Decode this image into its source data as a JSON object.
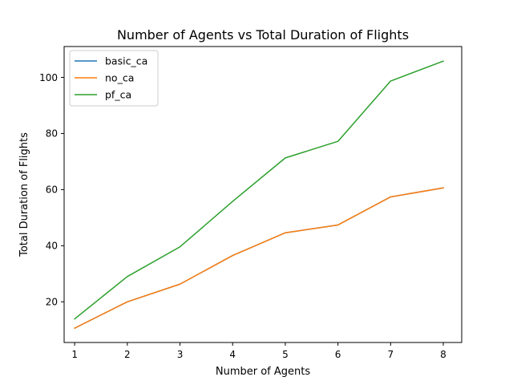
{
  "chart_data": {
    "type": "line",
    "title": "Number of Agents vs Total Duration of Flights",
    "xlabel": "Number of Agents",
    "ylabel": "Total Duration of Flights",
    "x": [
      1,
      2,
      3,
      4,
      5,
      6,
      7,
      8
    ],
    "xlim": [
      0.8,
      8.35
    ],
    "ylim": [
      5.5,
      111
    ],
    "xticks": [
      1,
      2,
      3,
      4,
      5,
      6,
      7,
      8
    ],
    "yticks": [
      20,
      40,
      60,
      80,
      100
    ],
    "grid": false,
    "legend": "upper-left",
    "series": [
      {
        "name": "basic_ca",
        "color": "#1f77b4",
        "values": [
          10.6,
          20.0,
          26.3,
          36.5,
          44.6,
          47.4,
          57.4,
          60.6
        ]
      },
      {
        "name": "no_ca",
        "color": "#ff7f0e",
        "values": [
          10.6,
          20.0,
          26.3,
          36.5,
          44.6,
          47.4,
          57.4,
          60.6
        ]
      },
      {
        "name": "pf_ca",
        "color": "#2ca02c",
        "values": [
          13.9,
          29.0,
          39.6,
          55.8,
          71.3,
          77.2,
          98.7,
          105.8
        ]
      }
    ]
  }
}
